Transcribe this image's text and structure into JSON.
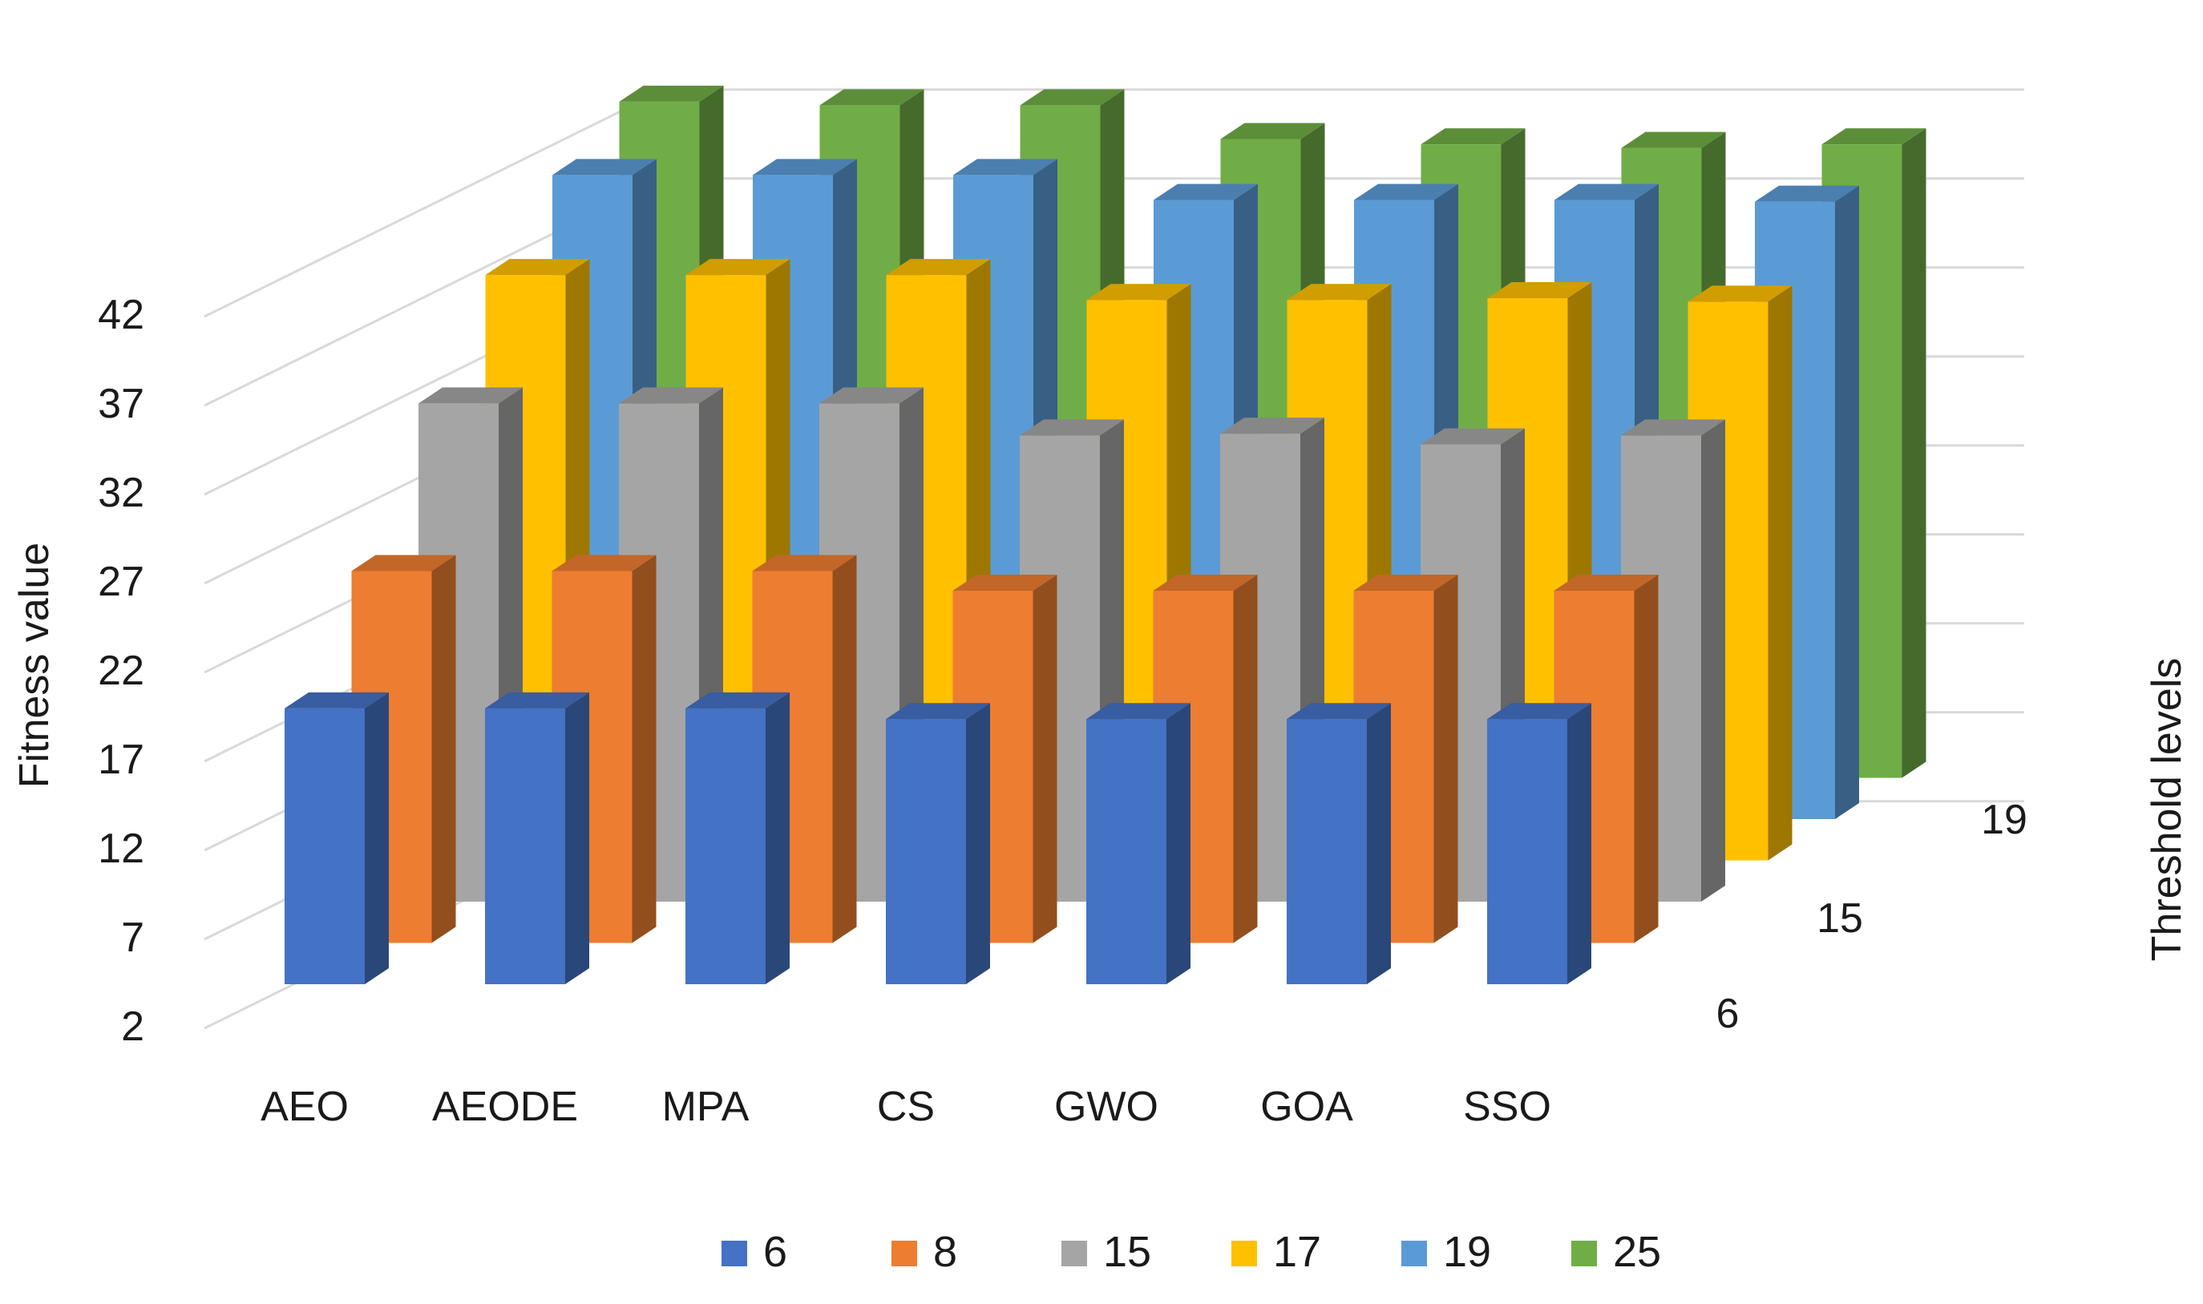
{
  "chart_data": {
    "type": "bar",
    "style": "3d-column",
    "title": "",
    "ylabel": "Fitness value",
    "zlabel": "Threshold levels",
    "xlabel": "",
    "categories": [
      "AEO",
      "AEODE",
      "MPA",
      "CS",
      "GWO",
      "GOA",
      "SSO"
    ],
    "y_ticks": [
      "42",
      "37",
      "32",
      "27",
      "22",
      "17",
      "12",
      "7",
      "2"
    ],
    "ylim": [
      2,
      42
    ],
    "depth_ticks": [
      "6",
      "15",
      "19"
    ],
    "series": [
      {
        "name": "6",
        "color": "#4472C4",
        "values": [
          17.5,
          17.5,
          17.5,
          16.9,
          16.9,
          16.9,
          16.9
        ]
      },
      {
        "name": "8",
        "color": "#ED7D31",
        "values": [
          22.9,
          22.9,
          22.9,
          21.8,
          21.8,
          21.8,
          21.8
        ]
      },
      {
        "name": "15",
        "color": "#A5A5A5",
        "values": [
          30.0,
          30.0,
          30.0,
          28.2,
          28.3,
          27.7,
          28.2
        ]
      },
      {
        "name": "17",
        "color": "#FFC000",
        "values": [
          34.9,
          34.9,
          34.9,
          33.5,
          33.5,
          33.6,
          33.4
        ]
      },
      {
        "name": "19",
        "color": "#5B9BD5",
        "values": [
          38.2,
          38.2,
          38.2,
          36.8,
          36.8,
          36.8,
          36.7
        ]
      },
      {
        "name": "25",
        "color": "#70AD47",
        "values": [
          40.0,
          39.8,
          39.8,
          37.9,
          37.6,
          37.4,
          37.6
        ]
      }
    ],
    "legend_position": "bottom",
    "grid": true
  }
}
